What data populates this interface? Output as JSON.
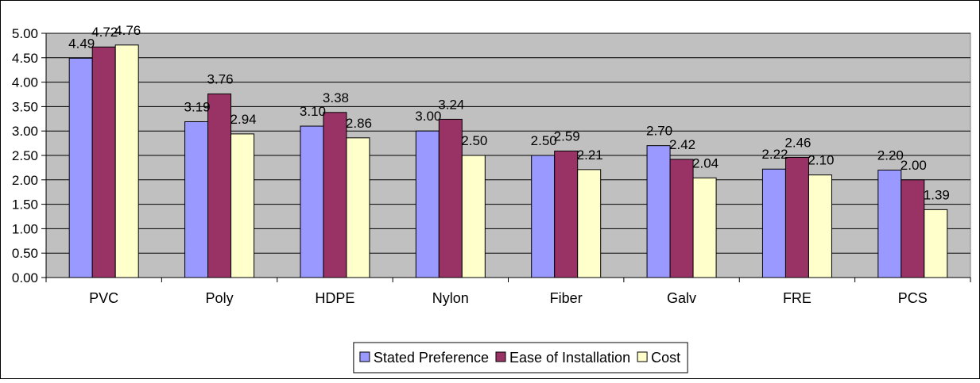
{
  "chart_data": {
    "type": "bar",
    "categories": [
      "PVC",
      "Poly",
      "HDPE",
      "Nylon",
      "Fiber",
      "Galv",
      "FRE",
      "PCS"
    ],
    "series": [
      {
        "name": "Stated Preference",
        "values": [
          4.49,
          3.19,
          3.1,
          3.0,
          2.5,
          2.7,
          2.22,
          2.2
        ],
        "labels": [
          "4.49",
          "3.19",
          "3.10",
          "3.00",
          "2.50",
          "2.70",
          "2.22",
          "2.20"
        ],
        "color": "#9999FF"
      },
      {
        "name": "Ease of Installation",
        "values": [
          4.72,
          3.76,
          3.38,
          3.24,
          2.59,
          2.42,
          2.46,
          2.0
        ],
        "labels": [
          "4.72",
          "3.76",
          "3.38",
          "3.24",
          "2.59",
          "2.42",
          "2.46",
          "2.00"
        ],
        "color": "#993366"
      },
      {
        "name": "Cost",
        "values": [
          4.76,
          2.94,
          2.86,
          2.5,
          2.21,
          2.04,
          2.1,
          1.39
        ],
        "labels": [
          "4.76",
          "2.94",
          "2.86",
          "2.50",
          "2.21",
          "2.04",
          "2.10",
          "1.39"
        ],
        "color": "#FFFFCC"
      }
    ],
    "yticks": [
      "0.00",
      "0.50",
      "1.00",
      "1.50",
      "2.00",
      "2.50",
      "3.00",
      "3.50",
      "4.00",
      "4.50",
      "5.00"
    ],
    "ylim": [
      0,
      5
    ],
    "grid": true,
    "legend": "bottom",
    "plot_background": "#C0C0C0"
  }
}
